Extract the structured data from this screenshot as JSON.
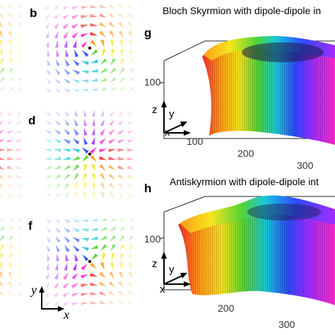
{
  "figure": {
    "panel_letters": [
      "b",
      "d",
      "f",
      "g",
      "h"
    ],
    "titles": {
      "g": "Bloch Skyrmion with dipole-dipole in",
      "h": "Antiskyrmion with dipole-dipole int"
    },
    "plot_g": {
      "z_tick": "100",
      "x_ticks": [
        "100",
        "200",
        "300"
      ],
      "axes": [
        "z",
        "y",
        "x"
      ]
    },
    "plot_h": {
      "z_tick": "100",
      "x_ticks": [
        "200",
        "300"
      ],
      "axes": [
        "z",
        "y",
        "x"
      ]
    },
    "coord_labels": {
      "y": "y",
      "x": "x"
    },
    "palette": [
      "#ff2a2a",
      "#ff9a1a",
      "#f7e51c",
      "#52d534",
      "#19c7d9",
      "#2b4bff",
      "#a52bff",
      "#ff2bd0"
    ],
    "surface_shading": "#000000"
  }
}
